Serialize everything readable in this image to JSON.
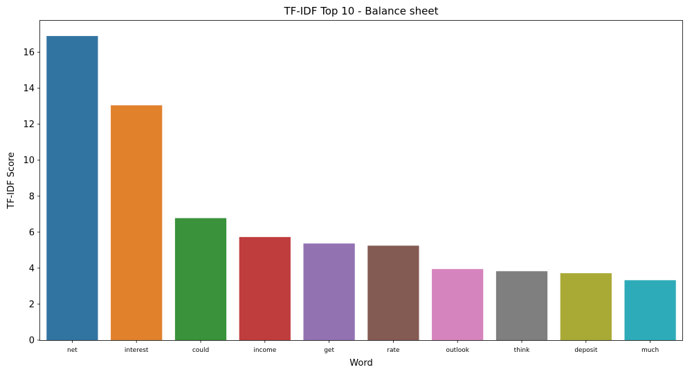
{
  "chart_data": {
    "type": "bar",
    "title": "TF-IDF Top 10 - Balance sheet",
    "xlabel": "Word",
    "ylabel": "TF-IDF Score",
    "categories": [
      "net",
      "interest",
      "could",
      "income",
      "get",
      "rate",
      "outlook",
      "think",
      "deposit",
      "much"
    ],
    "values": [
      16.9,
      13.05,
      6.78,
      5.73,
      5.37,
      5.25,
      3.95,
      3.83,
      3.72,
      3.33
    ],
    "colors": [
      "#3274a1",
      "#e1812c",
      "#3a923a",
      "#c03d3e",
      "#9372b2",
      "#845b53",
      "#d684bd",
      "#7f7f7f",
      "#a9aa35",
      "#2eabb8"
    ],
    "ylim": [
      0,
      17.75
    ],
    "yticks": [
      0,
      2,
      4,
      6,
      8,
      10,
      12,
      14,
      16
    ],
    "grid": false,
    "legend": "none"
  }
}
